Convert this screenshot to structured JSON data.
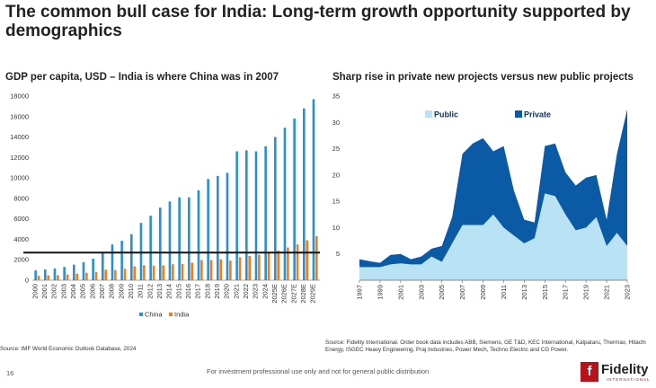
{
  "header": {
    "title": "The common bull case for India: Long-term growth opportunity supported by demographics"
  },
  "footer": {
    "page_number": "16",
    "disclaimer": "For investment professional use only and not for general public distribution",
    "logo_text": "Fidelity",
    "logo_subtext": "INTERNATIONAL"
  },
  "colors": {
    "china": "#2a8fd0",
    "india": "#f07c1c",
    "public": "#b9e3f4",
    "private": "#0a5aa6",
    "reference_line": "#111111"
  },
  "chart_data": [
    {
      "type": "bar",
      "title": "GDP per capita, USD – India is where China was in 2007",
      "source": "Source: IMF World Economic Outlook Database, 2024",
      "categories": [
        "2000",
        "2001",
        "2002",
        "2003",
        "2004",
        "2005",
        "2006",
        "2007",
        "2008",
        "2009",
        "2010",
        "2011",
        "2012",
        "2013",
        "2014",
        "2015",
        "2016",
        "2017",
        "2018",
        "2019",
        "2020",
        "2021",
        "2022",
        "2023",
        "2024",
        "2025E",
        "2026E",
        "2027E",
        "2028E",
        "2029E"
      ],
      "series": [
        {
          "name": "China",
          "values": [
            960,
            1050,
            1150,
            1300,
            1520,
            1760,
            2100,
            2700,
            3500,
            3850,
            4500,
            5600,
            6300,
            7100,
            7700,
            8100,
            8100,
            8800,
            9900,
            10200,
            10500,
            12600,
            12700,
            12600,
            13100,
            14000,
            14900,
            15800,
            16800,
            17700
          ]
        },
        {
          "name": "India",
          "values": [
            450,
            470,
            490,
            560,
            640,
            730,
            810,
            1030,
            1000,
            1110,
            1350,
            1460,
            1430,
            1450,
            1560,
            1590,
            1710,
            1980,
            1970,
            2050,
            1910,
            2250,
            2370,
            2500,
            2700,
            2900,
            3200,
            3500,
            3900,
            4300
          ]
        }
      ],
      "reference_line": 2700,
      "ylim": [
        0,
        18000
      ],
      "yticks": [
        0,
        2000,
        4000,
        6000,
        8000,
        10000,
        12000,
        14000,
        16000,
        18000
      ],
      "legend": [
        "China",
        "India"
      ],
      "legend_position": "bottom"
    },
    {
      "type": "area",
      "title": "Sharp rise in private new projects versus new public projects",
      "source": "Source: Fidelity International. Order book data includes ABB, Siemens, GE T&D, KEC International, Kalpataru, Thermax, Hitachi Energy, ISGEC Heavy Engineering, Praj Industries, Power Mech, Techno Electric and CG Power.",
      "x": [
        1997,
        1998,
        1999,
        2000,
        2001,
        2002,
        2003,
        2004,
        2005,
        2006,
        2007,
        2008,
        2009,
        2010,
        2011,
        2012,
        2013,
        2014,
        2015,
        2016,
        2017,
        2018,
        2019,
        2020,
        2021,
        2022,
        2023
      ],
      "xticks": [
        "1997",
        "1999",
        "2001",
        "2003",
        "2005",
        "2007",
        "2009",
        "2011",
        "2013",
        "2015",
        "2017",
        "2019",
        "2021",
        "2023"
      ],
      "series": [
        {
          "name": "Public",
          "values": [
            2.5,
            2.5,
            2.5,
            3,
            3.2,
            3,
            3,
            4.5,
            3.5,
            7,
            10.5,
            10.5,
            10.5,
            12.5,
            10,
            8.5,
            7,
            8,
            16.5,
            16,
            12.5,
            9.5,
            10,
            12,
            6.5,
            9,
            6.5
          ]
        },
        {
          "name": "Private",
          "values": [
            1.5,
            1.1,
            0.8,
            1.8,
            1.8,
            1.0,
            1.5,
            1.5,
            3.0,
            5.0,
            13.5,
            15.5,
            16.5,
            12,
            15.5,
            8.5,
            4.5,
            3,
            9,
            10,
            8,
            8.5,
            9.5,
            8,
            5,
            15,
            26
          ]
        }
      ],
      "stacked": true,
      "ylim": [
        0,
        35
      ],
      "yticks": [
        5,
        10,
        15,
        20,
        25,
        30,
        35
      ],
      "legend": [
        "Public",
        "Private"
      ],
      "legend_position": "top-left"
    }
  ]
}
